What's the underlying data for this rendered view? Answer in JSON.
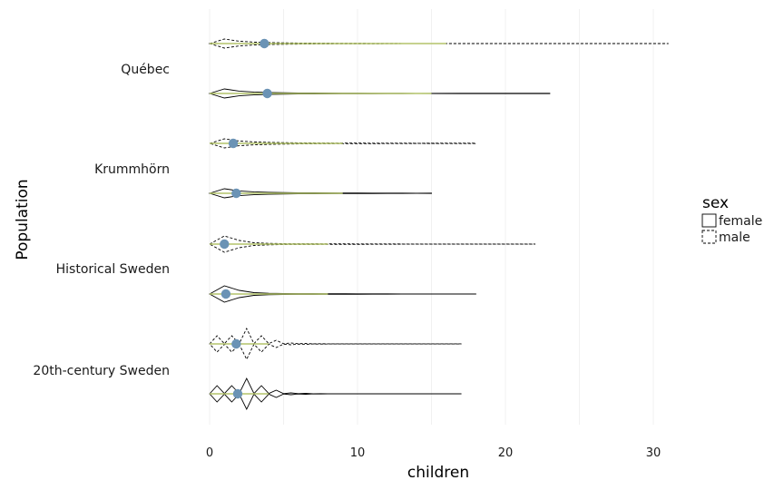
{
  "chart_data": {
    "type": "violin",
    "xlabel": "children",
    "ylabel": "Population",
    "xlim": [
      0,
      31
    ],
    "xticks": [
      0,
      10,
      20,
      30
    ],
    "grid": false,
    "legend": {
      "title": "sex",
      "placement": "right",
      "entries": [
        {
          "label": "female",
          "linestyle": "solid"
        },
        {
          "label": "male",
          "linestyle": "dashed"
        }
      ]
    },
    "categories": [
      "Québec",
      "Krummhörn",
      "Historical Sweden",
      "20th-century Sweden"
    ],
    "series": [
      {
        "population": "Québec",
        "sex": "male",
        "mean": 3.7,
        "max": 31,
        "green_to": 16
      },
      {
        "population": "Québec",
        "sex": "female",
        "mean": 3.9,
        "max": 23,
        "green_to": 15
      },
      {
        "population": "Krummhörn",
        "sex": "male",
        "mean": 1.6,
        "max": 18,
        "green_to": 9
      },
      {
        "population": "Krummhörn",
        "sex": "female",
        "mean": 1.8,
        "max": 15,
        "green_to": 9
      },
      {
        "population": "Historical Sweden",
        "sex": "male",
        "mean": 1.0,
        "max": 22,
        "green_to": 8
      },
      {
        "population": "Historical Sweden",
        "sex": "female",
        "mean": 1.1,
        "max": 18,
        "green_to": 8
      },
      {
        "population": "20th-century Sweden",
        "sex": "male",
        "mean": 1.8,
        "max": 17,
        "green_to": 4
      },
      {
        "population": "20th-century Sweden",
        "sex": "female",
        "mean": 1.9,
        "max": 17,
        "green_to": 4
      }
    ],
    "colors": {
      "mean_point": "#6b93b5",
      "inner_line": "#b3c46a",
      "outline": "#000000"
    }
  }
}
